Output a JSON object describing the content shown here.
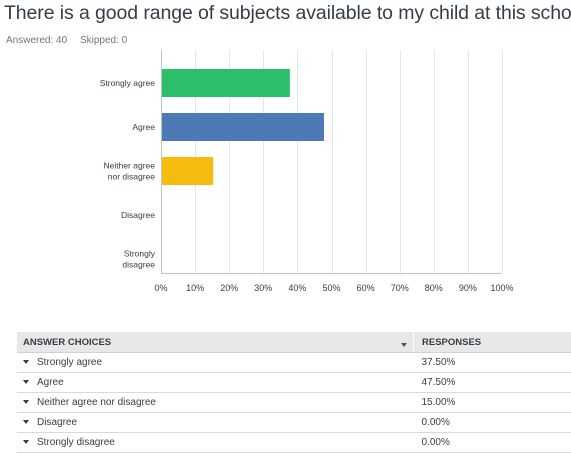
{
  "question": {
    "title": "There is a good range of subjects available to my child at this school.",
    "answered": "Answered: 40",
    "skipped": "Skipped: 0"
  },
  "chart_data": {
    "type": "bar",
    "orientation": "horizontal",
    "categories": [
      "Strongly agree",
      "Agree",
      "Neither agree nor disagree",
      "Disagree",
      "Strongly disagree"
    ],
    "category_lines": [
      [
        "Strongly agree"
      ],
      [
        "Agree"
      ],
      [
        "Neither agree",
        "nor disagree"
      ],
      [
        "Disagree"
      ],
      [
        "Strongly",
        "disagree"
      ]
    ],
    "values": [
      37.5,
      47.5,
      15.0,
      0.0,
      0.0
    ],
    "colors": [
      "#2dbe6c",
      "#4d79b6",
      "#f5bc0f",
      "#a5a5a5",
      "#a5a5a5"
    ],
    "xticks": [
      "0%",
      "10%",
      "20%",
      "30%",
      "40%",
      "50%",
      "60%",
      "70%",
      "80%",
      "90%",
      "100%"
    ],
    "xlim": [
      0,
      100
    ],
    "grid": true,
    "title": "",
    "xlabel": "",
    "ylabel": ""
  },
  "table": {
    "headers": [
      "ANSWER CHOICES",
      "RESPONSES"
    ],
    "rows": [
      {
        "choice": "Strongly agree",
        "response": "37.50%"
      },
      {
        "choice": "Agree",
        "response": "47.50%"
      },
      {
        "choice": "Neither agree nor disagree",
        "response": "15.00%"
      },
      {
        "choice": "Disagree",
        "response": "0.00%"
      },
      {
        "choice": "Strongly disagree",
        "response": "0.00%"
      }
    ]
  }
}
